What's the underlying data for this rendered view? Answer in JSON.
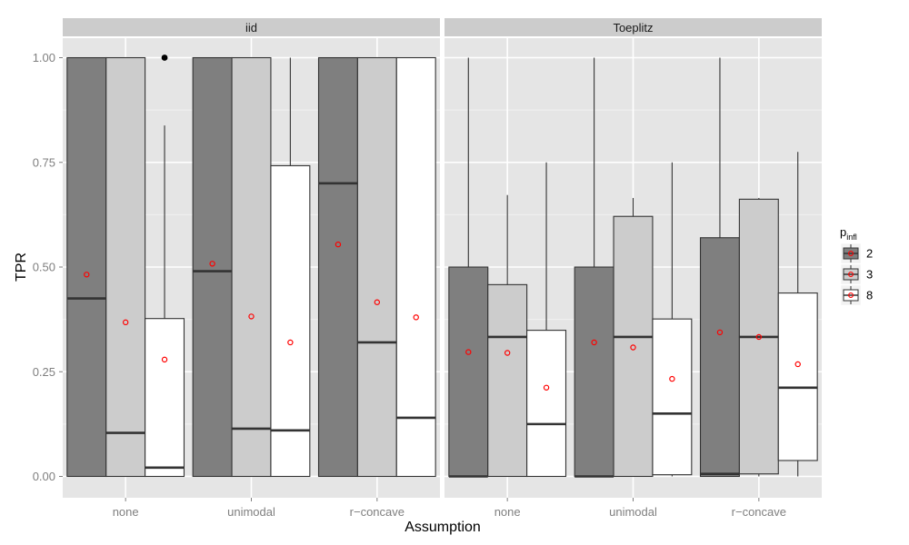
{
  "chart_data": {
    "type": "boxplot",
    "xlabel": "Assumption",
    "ylabel": "TPR",
    "ylim": [
      0,
      1
    ],
    "yticks": [
      "0.00",
      "0.25",
      "0.50",
      "0.75",
      "1.00"
    ],
    "yticks_values": [
      0,
      0.25,
      0.5,
      0.75,
      1.0
    ],
    "categories": [
      "none",
      "unimodal",
      "r−concave"
    ],
    "legend": {
      "title": "p",
      "title_subscript": "infl",
      "placement": "right",
      "groups": [
        "2",
        "3",
        "8"
      ]
    },
    "colors": {
      "group_fills": [
        "#7f7f7f",
        "#cccccc",
        "#ffffff"
      ],
      "panel_bg": "#e5e5e5",
      "grid": "#ffffff",
      "strip_bg": "#cccccc",
      "box_stroke": "#333333",
      "mean_point": "#ff0000",
      "outlier": "#000000"
    },
    "facets": [
      {
        "label": "iid",
        "boxes": [
          {
            "category": "none",
            "group": "2",
            "lower": 0,
            "q1": 0,
            "median": 0.425,
            "q3": 1.0,
            "upper": 1.0,
            "mean": 0.482,
            "outliers": []
          },
          {
            "category": "none",
            "group": "3",
            "lower": 0,
            "q1": 0,
            "median": 0.104,
            "q3": 1.0,
            "upper": 1.0,
            "mean": 0.368,
            "outliers": []
          },
          {
            "category": "none",
            "group": "8",
            "lower": 0,
            "q1": 0,
            "median": 0.021,
            "q3": 0.377,
            "upper": 0.838,
            "mean": 0.279,
            "outliers": [
              1.0
            ]
          },
          {
            "category": "unimodal",
            "group": "2",
            "lower": 0,
            "q1": 0,
            "median": 0.49,
            "q3": 1.0,
            "upper": 1.0,
            "mean": 0.508,
            "outliers": []
          },
          {
            "category": "unimodal",
            "group": "3",
            "lower": 0,
            "q1": 0,
            "median": 0.114,
            "q3": 1.0,
            "upper": 1.0,
            "mean": 0.382,
            "outliers": []
          },
          {
            "category": "unimodal",
            "group": "8",
            "lower": 0,
            "q1": 0,
            "median": 0.11,
            "q3": 0.742,
            "upper": 1.0,
            "mean": 0.32,
            "outliers": []
          },
          {
            "category": "r−concave",
            "group": "2",
            "lower": 0,
            "q1": 0,
            "median": 0.7,
            "q3": 1.0,
            "upper": 1.0,
            "mean": 0.554,
            "outliers": []
          },
          {
            "category": "r−concave",
            "group": "3",
            "lower": 0,
            "q1": 0,
            "median": 0.32,
            "q3": 1.0,
            "upper": 1.0,
            "mean": 0.416,
            "outliers": []
          },
          {
            "category": "r−concave",
            "group": "8",
            "lower": 0,
            "q1": 0,
            "median": 0.14,
            "q3": 1.0,
            "upper": 1.0,
            "mean": 0.38,
            "outliers": []
          }
        ]
      },
      {
        "label": "Toeplitz",
        "boxes": [
          {
            "category": "none",
            "group": "2",
            "lower": 0,
            "q1": 0,
            "median": 0,
            "q3": 0.5,
            "upper": 1.0,
            "mean": 0.297,
            "outliers": []
          },
          {
            "category": "none",
            "group": "3",
            "lower": 0,
            "q1": 0,
            "median": 0.333,
            "q3": 0.458,
            "upper": 0.672,
            "mean": 0.295,
            "outliers": []
          },
          {
            "category": "none",
            "group": "8",
            "lower": 0,
            "q1": 0,
            "median": 0.125,
            "q3": 0.349,
            "upper": 0.75,
            "mean": 0.212,
            "outliers": []
          },
          {
            "category": "unimodal",
            "group": "2",
            "lower": 0,
            "q1": 0,
            "median": 0,
            "q3": 0.5,
            "upper": 1.0,
            "mean": 0.32,
            "outliers": []
          },
          {
            "category": "unimodal",
            "group": "3",
            "lower": 0,
            "q1": 0,
            "median": 0.333,
            "q3": 0.621,
            "upper": 0.665,
            "mean": 0.308,
            "outliers": []
          },
          {
            "category": "unimodal",
            "group": "8",
            "lower": 0,
            "q1": 0.004,
            "median": 0.15,
            "q3": 0.376,
            "upper": 0.75,
            "mean": 0.233,
            "outliers": []
          },
          {
            "category": "r−concave",
            "group": "2",
            "lower": 0,
            "q1": 0,
            "median": 0.006,
            "q3": 0.57,
            "upper": 1.0,
            "mean": 0.344,
            "outliers": []
          },
          {
            "category": "r−concave",
            "group": "3",
            "lower": 0,
            "q1": 0.006,
            "median": 0.333,
            "q3": 0.662,
            "upper": 0.665,
            "mean": 0.333,
            "outliers": []
          },
          {
            "category": "r−concave",
            "group": "8",
            "lower": 0,
            "q1": 0.038,
            "median": 0.212,
            "q3": 0.438,
            "upper": 0.775,
            "mean": 0.268,
            "outliers": []
          }
        ]
      }
    ]
  }
}
